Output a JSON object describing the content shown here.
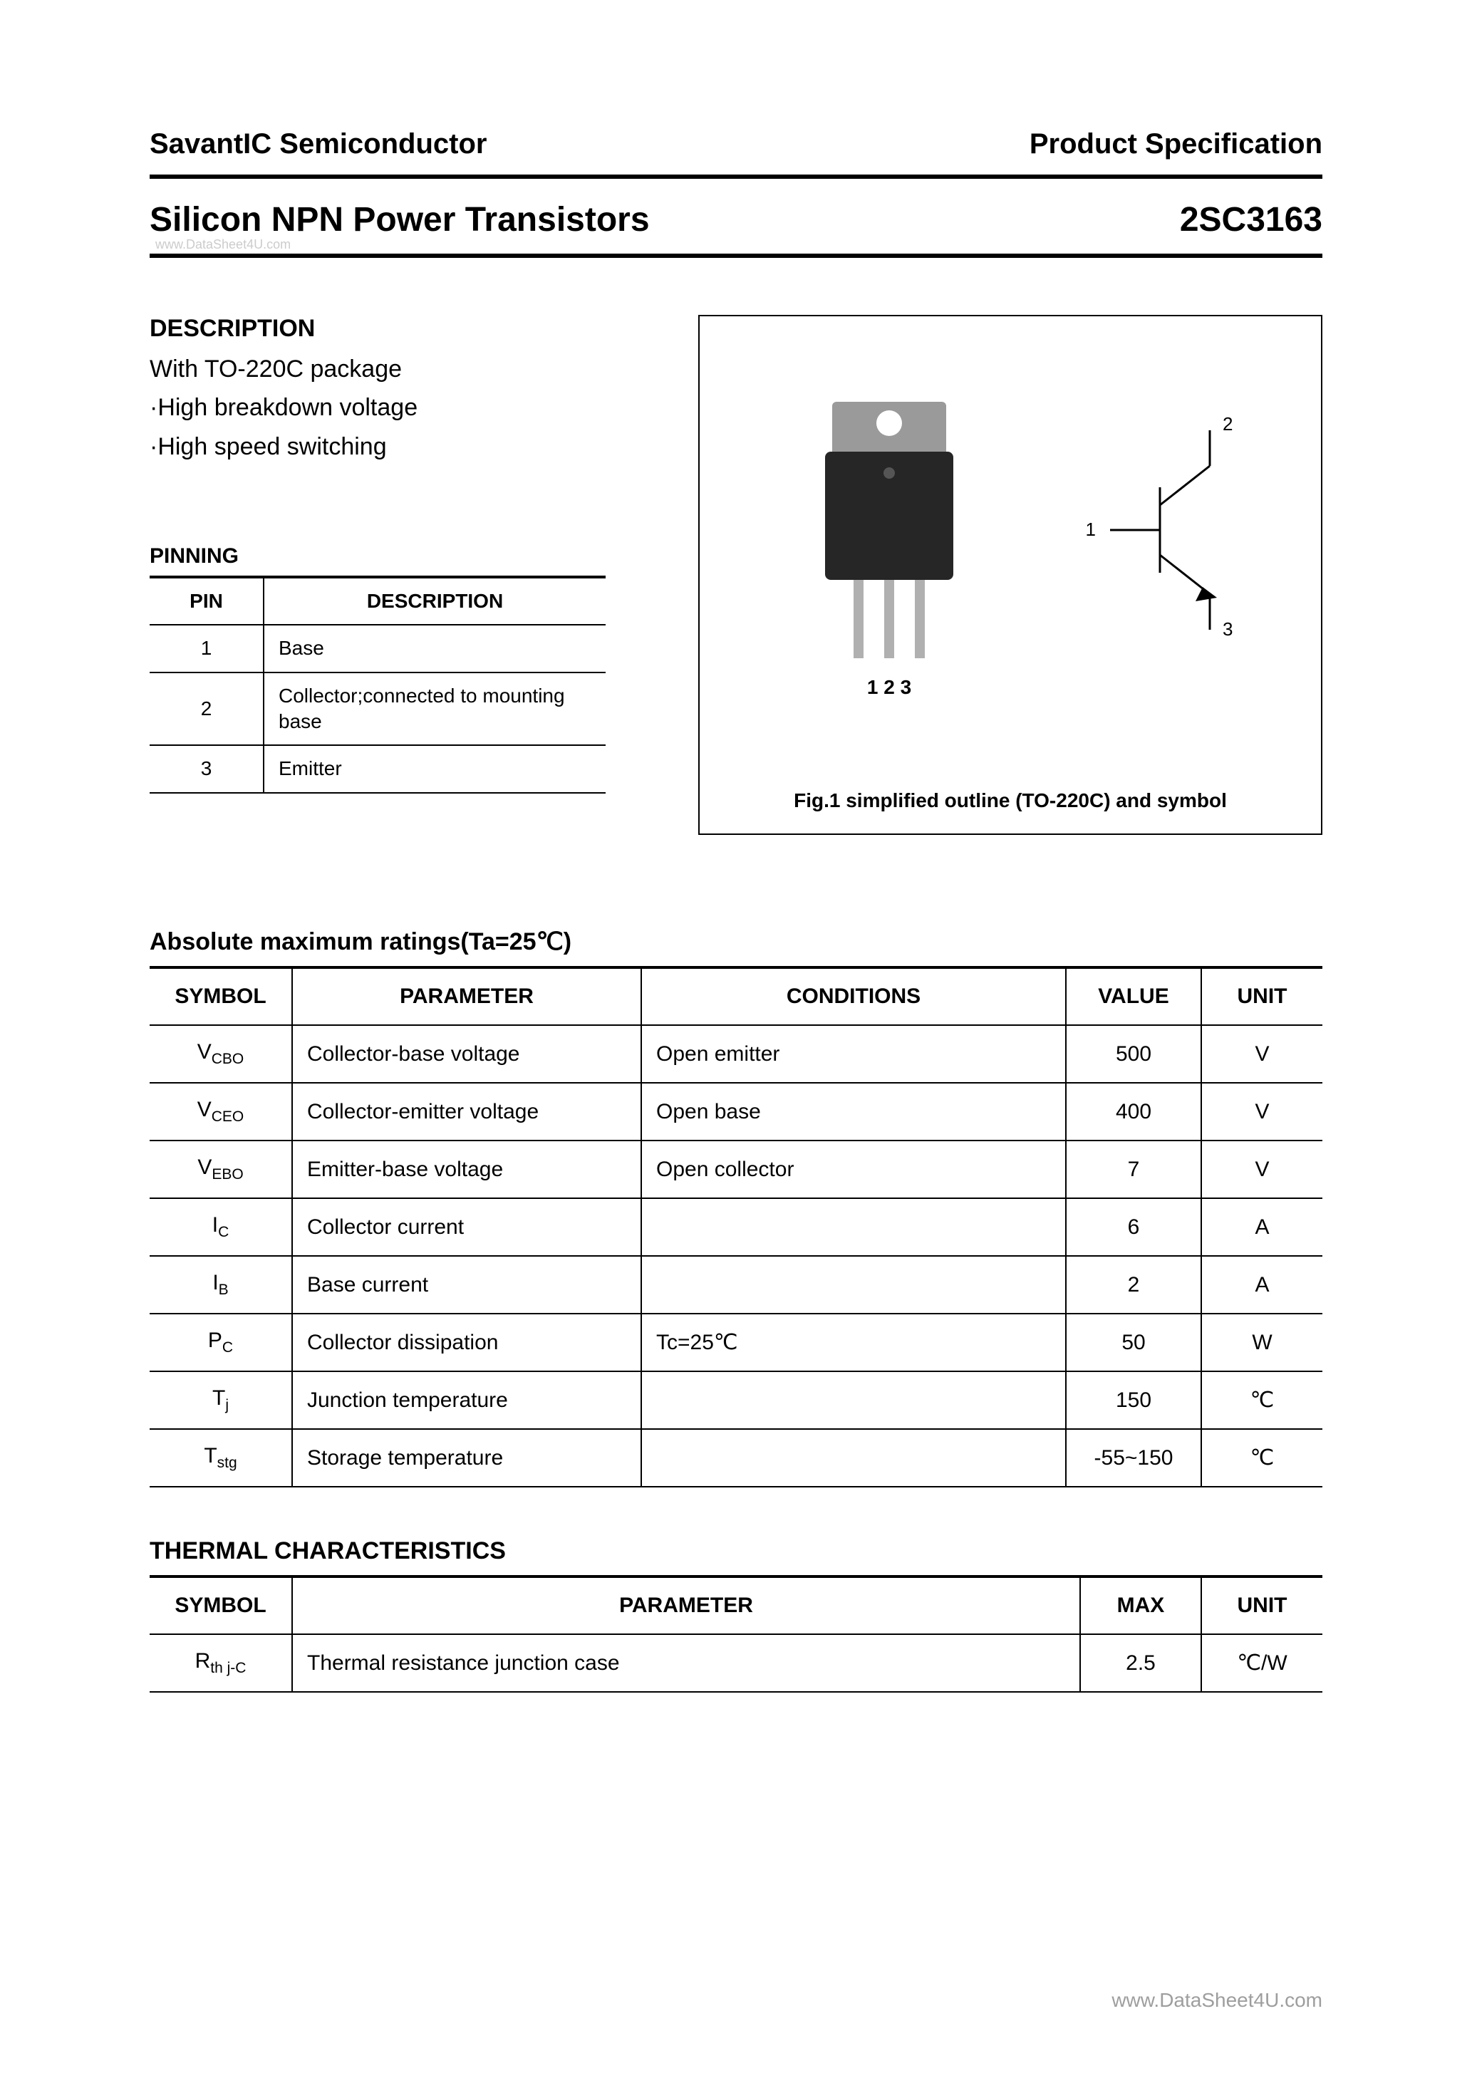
{
  "header": {
    "company": "SavantIC Semiconductor",
    "spec": "Product Specification"
  },
  "title": {
    "main": "Silicon NPN Power Transistors",
    "part": "2SC3163",
    "watermark": "www.DataSheet4U.com"
  },
  "description": {
    "heading": "DESCRIPTION",
    "lines": [
      "With TO-220C package",
      "·High breakdown voltage",
      "·High speed switching"
    ]
  },
  "pinning": {
    "heading": "PINNING",
    "columns": [
      "PIN",
      "DESCRIPTION"
    ],
    "rows": [
      {
        "pin": "1",
        "desc": "Base"
      },
      {
        "pin": "2",
        "desc": "Collector;connected to mounting base"
      },
      {
        "pin": "3",
        "desc": "Emitter"
      }
    ]
  },
  "figure": {
    "caption": "Fig.1 simplified outline (TO-220C) and symbol",
    "pin_labels": "1  2  3",
    "sym_labels": {
      "l1": "1",
      "l2": "2",
      "l3": "3"
    }
  },
  "ratings": {
    "heading": "Absolute maximum ratings(Ta=25℃)",
    "columns": [
      "SYMBOL",
      "PARAMETER",
      "CONDITIONS",
      "VALUE",
      "UNIT"
    ],
    "rows": [
      {
        "symbol_main": "V",
        "symbol_sub": "CBO",
        "parameter": "Collector-base voltage",
        "conditions": "Open emitter",
        "value": "500",
        "unit": "V"
      },
      {
        "symbol_main": "V",
        "symbol_sub": "CEO",
        "parameter": "Collector-emitter voltage",
        "conditions": "Open base",
        "value": "400",
        "unit": "V"
      },
      {
        "symbol_main": "V",
        "symbol_sub": "EBO",
        "parameter": "Emitter-base voltage",
        "conditions": "Open collector",
        "value": "7",
        "unit": "V"
      },
      {
        "symbol_main": "I",
        "symbol_sub": "C",
        "parameter": "Collector current",
        "conditions": "",
        "value": "6",
        "unit": "A"
      },
      {
        "symbol_main": "I",
        "symbol_sub": "B",
        "parameter": "Base current",
        "conditions": "",
        "value": "2",
        "unit": "A"
      },
      {
        "symbol_main": "P",
        "symbol_sub": "C",
        "parameter": "Collector dissipation",
        "conditions": "Tc=25℃",
        "value": "50",
        "unit": "W"
      },
      {
        "symbol_main": "T",
        "symbol_sub": "j",
        "parameter": "Junction temperature",
        "conditions": "",
        "value": "150",
        "unit": "℃"
      },
      {
        "symbol_main": "T",
        "symbol_sub": "stg",
        "parameter": "Storage temperature",
        "conditions": "",
        "value": "-55~150",
        "unit": "℃"
      }
    ]
  },
  "thermal": {
    "heading": "THERMAL CHARACTERISTICS",
    "columns": [
      "SYMBOL",
      "PARAMETER",
      "MAX",
      "UNIT"
    ],
    "rows": [
      {
        "symbol_main": "R",
        "symbol_sub": "th j-C",
        "parameter": "Thermal resistance junction case",
        "max": "2.5",
        "unit": "℃/W"
      }
    ]
  },
  "footer": {
    "watermark": "www.DataSheet4U.com"
  },
  "style": {
    "colors": {
      "text": "#000000",
      "bg": "#ffffff",
      "watermark": "#9e9e9e",
      "watermark_light": "#cccccc",
      "package_dark": "#262626",
      "package_tab": "#9a9a9a",
      "lead": "#b0b0b0"
    }
  }
}
